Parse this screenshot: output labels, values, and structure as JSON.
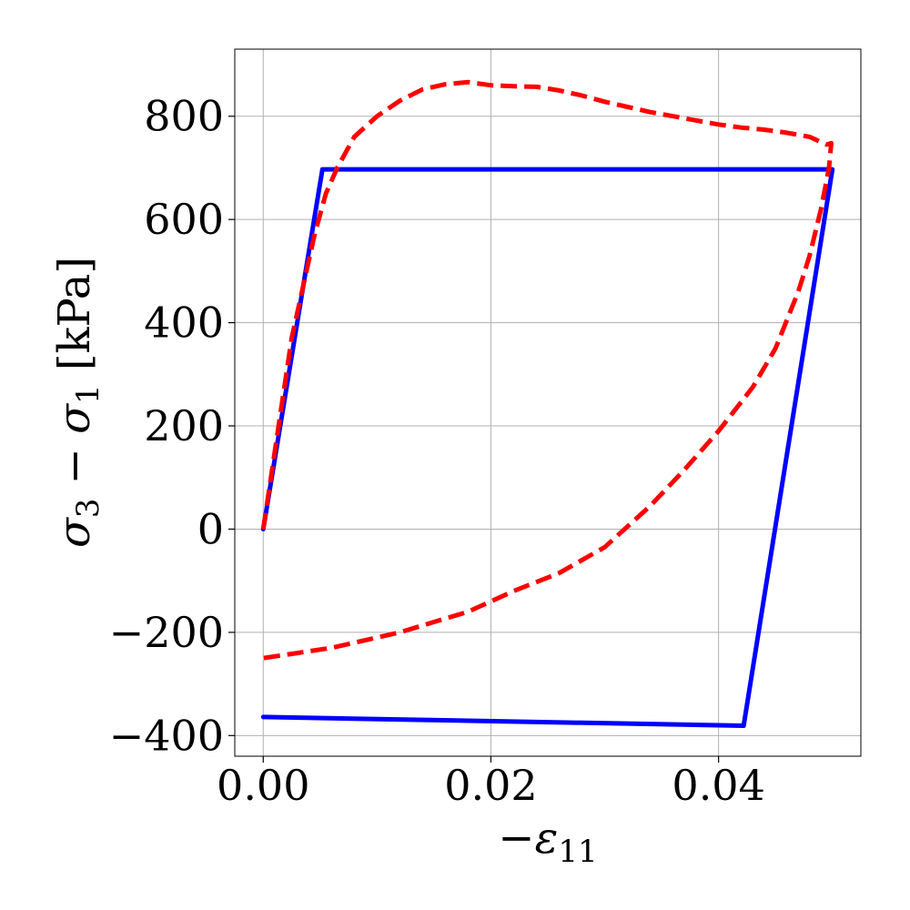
{
  "chart_data": {
    "type": "line",
    "xlabel": "−ε11",
    "ylabel": "σ3 − σ1 [kPa]",
    "xlim": [
      -0.0025,
      0.0525
    ],
    "ylim": [
      -440,
      930
    ],
    "grid": true,
    "x_ticks": [
      0.0,
      0.02,
      0.04
    ],
    "x_tick_labels": [
      "0.00",
      "0.02",
      "0.04"
    ],
    "y_ticks": [
      -400,
      -200,
      0,
      200,
      400,
      600,
      800
    ],
    "y_tick_labels": [
      "−400",
      "−200",
      "0",
      "200",
      "400",
      "600",
      "800"
    ],
    "series": [
      {
        "style": "solid",
        "color": "#0000ff",
        "points": [
          [
            0.0,
            0
          ],
          [
            0.0052,
            697
          ],
          [
            0.05,
            697
          ],
          [
            0.0422,
            -381
          ],
          [
            0.0,
            -364
          ]
        ]
      },
      {
        "style": "dashed",
        "color": "#ff0000",
        "points": [
          [
            0.0,
            0
          ],
          [
            0.0025,
            370
          ],
          [
            0.0045,
            570
          ],
          [
            0.0055,
            650
          ],
          [
            0.0065,
            700
          ],
          [
            0.008,
            760
          ],
          [
            0.01,
            800
          ],
          [
            0.012,
            830
          ],
          [
            0.014,
            852
          ],
          [
            0.016,
            862
          ],
          [
            0.018,
            866
          ],
          [
            0.02,
            860
          ],
          [
            0.022,
            858
          ],
          [
            0.024,
            857
          ],
          [
            0.026,
            850
          ],
          [
            0.028,
            840
          ],
          [
            0.03,
            828
          ],
          [
            0.032,
            818
          ],
          [
            0.034,
            808
          ],
          [
            0.036,
            800
          ],
          [
            0.038,
            792
          ],
          [
            0.04,
            784
          ],
          [
            0.042,
            778
          ],
          [
            0.044,
            774
          ],
          [
            0.046,
            768
          ],
          [
            0.048,
            760
          ],
          [
            0.0495,
            745
          ],
          [
            0.0499,
            748
          ],
          [
            0.0497,
            700
          ],
          [
            0.049,
            620
          ],
          [
            0.048,
            530
          ],
          [
            0.047,
            460
          ],
          [
            0.045,
            350
          ],
          [
            0.043,
            275
          ],
          [
            0.04,
            190
          ],
          [
            0.037,
            115
          ],
          [
            0.034,
            45
          ],
          [
            0.03,
            -35
          ],
          [
            0.026,
            -85
          ],
          [
            0.022,
            -120
          ],
          [
            0.018,
            -160
          ],
          [
            0.015,
            -180
          ],
          [
            0.012,
            -200
          ],
          [
            0.009,
            -215
          ],
          [
            0.006,
            -230
          ],
          [
            0.003,
            -240
          ],
          [
            0.0,
            -250
          ]
        ]
      }
    ]
  }
}
